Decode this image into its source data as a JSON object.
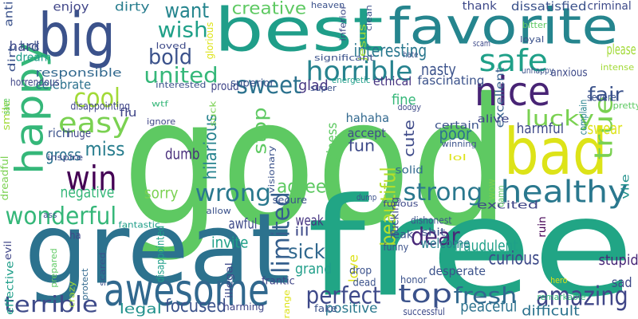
{
  "cloud": {
    "background": "#ffffff",
    "words": [
      {
        "text": "good",
        "color": "#5ec962"
      },
      {
        "text": "free",
        "color": "#21a585"
      },
      {
        "text": "best",
        "color": "#1f9e89"
      },
      {
        "text": "great",
        "color": "#2c728e"
      },
      {
        "text": "favorite",
        "color": "#25858e"
      },
      {
        "text": "big",
        "color": "#3b528b"
      },
      {
        "text": "happy",
        "color": "#35b779"
      },
      {
        "text": "bad",
        "color": "#dde318"
      },
      {
        "text": "awesome",
        "color": "#31688e"
      },
      {
        "text": "nice",
        "color": "#482475"
      },
      {
        "text": "safe",
        "color": "#1fa088"
      },
      {
        "text": "win",
        "color": "#440154"
      },
      {
        "text": "healthy",
        "color": "#2a788e"
      },
      {
        "text": "true",
        "color": "#7ad151"
      },
      {
        "text": "easy",
        "color": "#7ad151"
      },
      {
        "text": "cool",
        "color": "#a2da37"
      },
      {
        "text": "wonderful",
        "color": "#35b779"
      },
      {
        "text": "terrible",
        "color": "#3e4a89"
      },
      {
        "text": "limited",
        "color": "#355f8d"
      },
      {
        "text": "horrible",
        "color": "#26828e"
      },
      {
        "text": "sweet",
        "color": "#2c728e"
      },
      {
        "text": "strong",
        "color": "#2a788e"
      },
      {
        "text": "amazing",
        "color": "#404688"
      },
      {
        "text": "perfect",
        "color": "#3e4989"
      },
      {
        "text": "fresh",
        "color": "#31688e"
      },
      {
        "text": "top",
        "color": "#3b528b"
      },
      {
        "text": "beautiful",
        "color": "#b5de2b"
      },
      {
        "text": "wrong",
        "color": "#2a788e"
      },
      {
        "text": "lucky",
        "color": "#7ad151"
      },
      {
        "text": "dear",
        "color": "#482878"
      },
      {
        "text": "bold",
        "color": "#3b528b"
      },
      {
        "text": "united",
        "color": "#35b779"
      },
      {
        "text": "wish",
        "color": "#1fa088"
      },
      {
        "text": "want",
        "color": "#25858e"
      },
      {
        "text": "creative",
        "color": "#5ec962"
      },
      {
        "text": "interesting",
        "color": "#2a788e"
      },
      {
        "text": "miss",
        "color": "#287d8e"
      },
      {
        "text": "sick",
        "color": "#31688e"
      },
      {
        "text": "fair",
        "color": "#3b528b"
      },
      {
        "text": "focused",
        "color": "#3b528b"
      },
      {
        "text": "agree",
        "color": "#5ec962"
      },
      {
        "text": "stop",
        "color": "#5ec962"
      },
      {
        "text": "curious",
        "color": "#3e4a89"
      },
      {
        "text": "hilarious",
        "color": "#26828e"
      },
      {
        "text": "poor",
        "color": "#2c728e"
      },
      {
        "text": "gross",
        "color": "#2c728e"
      },
      {
        "text": "fun",
        "color": "#3e4a89"
      },
      {
        "text": "negative",
        "color": "#35b779"
      },
      {
        "text": "sorry",
        "color": "#7ad151"
      },
      {
        "text": "dumb",
        "color": "#472d7b"
      },
      {
        "text": "nasty",
        "color": "#3b528b"
      },
      {
        "text": "weak",
        "color": "#453581"
      },
      {
        "text": "awful",
        "color": "#3e4a89"
      },
      {
        "text": "swear",
        "color": "#dde318"
      },
      {
        "text": "invite",
        "color": "#1fa088"
      },
      {
        "text": "cute",
        "color": "#3e4a89"
      },
      {
        "text": "fraudulent",
        "color": "#1fa088"
      },
      {
        "text": "harmful",
        "color": "#3e4989"
      },
      {
        "text": "stupid",
        "color": "#482878"
      },
      {
        "text": "difficult",
        "color": "#2c728e"
      },
      {
        "text": "peaceful",
        "color": "#2c728e"
      },
      {
        "text": "positive",
        "color": "#2a788e"
      },
      {
        "text": "celebrate",
        "color": "#2c728e"
      },
      {
        "text": "responsible",
        "color": "#31688e"
      },
      {
        "text": "dirty",
        "color": "#287d8e"
      },
      {
        "text": "enjoy",
        "color": "#404688"
      },
      {
        "text": "thank",
        "color": "#3e4989"
      },
      {
        "text": "dissatisfied",
        "color": "#3b528b"
      },
      {
        "text": "criminal",
        "color": "#3e4a89"
      },
      {
        "text": "please",
        "color": "#a2da37"
      },
      {
        "text": "legal",
        "color": "#21918c"
      },
      {
        "text": "welcome",
        "color": "#287d8e"
      },
      {
        "text": "glad",
        "color": "#453581"
      },
      {
        "text": "fine",
        "color": "#35b779"
      },
      {
        "text": "happiness",
        "color": "#5ec962"
      },
      {
        "text": "fascinating",
        "color": "#3b528b"
      },
      {
        "text": "ethical",
        "color": "#463480"
      },
      {
        "text": "hahaha",
        "color": "#31688e"
      },
      {
        "text": "accept",
        "color": "#3e4a89"
      },
      {
        "text": "love",
        "color": "#dde318"
      },
      {
        "text": "desperate",
        "color": "#3b528b"
      },
      {
        "text": "grand",
        "color": "#1f9e89"
      },
      {
        "text": "sad",
        "color": "#3e4a89"
      },
      {
        "text": "ill",
        "color": "#3e4a89"
      },
      {
        "text": "hard",
        "color": "#3e4a89"
      },
      {
        "text": "luck",
        "color": "#3b528b"
      },
      {
        "text": "rich",
        "color": "#3b528b"
      },
      {
        "text": "huge",
        "color": "#404688"
      },
      {
        "text": "flu",
        "color": "#404688"
      },
      {
        "text": "smile",
        "color": "#a2da37"
      },
      {
        "text": "effective",
        "color": "#1f9e89"
      },
      {
        "text": "excellent",
        "color": "#355f8d"
      },
      {
        "text": "proud",
        "color": "#404688"
      },
      {
        "text": "superior",
        "color": "#3b528b"
      },
      {
        "text": "anxious",
        "color": "#3e4a89"
      },
      {
        "text": "severe",
        "color": "#3b528b"
      },
      {
        "text": "complain",
        "color": "#26828e"
      },
      {
        "text": "dream",
        "color": "#1f9e89"
      },
      {
        "text": "anti",
        "color": "#3b528b"
      },
      {
        "text": "horrendous",
        "color": "#404688"
      },
      {
        "text": "disappointing",
        "color": "#404688"
      },
      {
        "text": "solid",
        "color": "#31688e"
      },
      {
        "text": "certain",
        "color": "#3b528b"
      },
      {
        "text": "alive",
        "color": "#404688"
      },
      {
        "text": "excited",
        "color": "#404688"
      },
      {
        "text": "ruin",
        "color": "#440154"
      },
      {
        "text": "vile",
        "color": "#21918c"
      },
      {
        "text": "fucking",
        "color": "#3e4a89"
      },
      {
        "text": "secure",
        "color": "#3b528b"
      },
      {
        "text": "dead",
        "color": "#3b528b"
      },
      {
        "text": "drop",
        "color": "#3b528b"
      },
      {
        "text": "frantic",
        "color": "#404688"
      },
      {
        "text": "shit",
        "color": "#3b528b"
      },
      {
        "text": "leak",
        "color": "#3b528b"
      },
      {
        "text": "funny",
        "color": "#3b528b"
      },
      {
        "text": "harming",
        "color": "#404688"
      },
      {
        "text": "fake",
        "color": "#3b528b"
      },
      {
        "text": "successful",
        "color": "#3e4a89"
      },
      {
        "text": "honor",
        "color": "#3b528b"
      },
      {
        "text": "dishonest",
        "color": "#3b528b"
      },
      {
        "text": "strange",
        "color": "#dde318"
      },
      {
        "text": "illegal",
        "color": "#3e4a89"
      },
      {
        "text": "remarkable",
        "color": "#35b779"
      },
      {
        "text": "fantastic",
        "color": "#1f9e89"
      },
      {
        "text": "evil",
        "color": "#404688"
      },
      {
        "text": "ha",
        "color": "#404688"
      },
      {
        "text": "prepared",
        "color": "#5ec962"
      },
      {
        "text": "scared",
        "color": "#3b528b"
      },
      {
        "text": "protect",
        "color": "#31688e"
      },
      {
        "text": "crazy",
        "color": "#a2da37"
      },
      {
        "text": "disappointed",
        "color": "#1f9e89"
      },
      {
        "text": "dreadful",
        "color": "#7ad151"
      },
      {
        "text": "save",
        "color": "#5ec962"
      },
      {
        "text": "ass",
        "color": "#3b528b"
      },
      {
        "text": "inspire",
        "color": "#3e4a89"
      },
      {
        "text": "ignore",
        "color": "#404688"
      },
      {
        "text": "wtf",
        "color": "#35b779"
      },
      {
        "text": "suck",
        "color": "#7ad151"
      },
      {
        "text": "visionary",
        "color": "#3b528b"
      },
      {
        "text": "allow",
        "color": "#3b528b"
      },
      {
        "text": "interested",
        "color": "#3b528b"
      },
      {
        "text": "loved",
        "color": "#3e4a89"
      },
      {
        "text": "glorious",
        "color": "#dde318"
      },
      {
        "text": "heaven",
        "color": "#3b528b"
      },
      {
        "text": "inferior",
        "color": "#3e4a89"
      },
      {
        "text": "jesus",
        "color": "#a2da37"
      },
      {
        "text": "clean",
        "color": "#3b528b"
      },
      {
        "text": "bitter",
        "color": "#5ec962"
      },
      {
        "text": "loyal",
        "color": "#3b528b"
      },
      {
        "text": "intense",
        "color": "#a2da37"
      },
      {
        "text": "scam",
        "color": "#3e4a89"
      },
      {
        "text": "significant",
        "color": "#3b528b"
      },
      {
        "text": "hate",
        "color": "#3b528b"
      },
      {
        "text": "energetic",
        "color": "#1f9e89"
      },
      {
        "text": "super",
        "color": "#3b528b"
      },
      {
        "text": "unhappy",
        "color": "#3b528b"
      },
      {
        "text": "pretty",
        "color": "#5ec962"
      },
      {
        "text": "dodgy",
        "color": "#3e4a89"
      },
      {
        "text": "winning",
        "color": "#3b528b"
      },
      {
        "text": "lol",
        "color": "#dde318"
      },
      {
        "text": "wow",
        "color": "#7ad151"
      },
      {
        "text": "damn",
        "color": "#5ec962"
      },
      {
        "text": "furious",
        "color": "#3e4a89"
      },
      {
        "text": "dump",
        "color": "#3b528b"
      },
      {
        "text": "hero",
        "color": "#dde318"
      },
      {
        "text": "dirt",
        "color": "#3b528b"
      }
    ]
  }
}
